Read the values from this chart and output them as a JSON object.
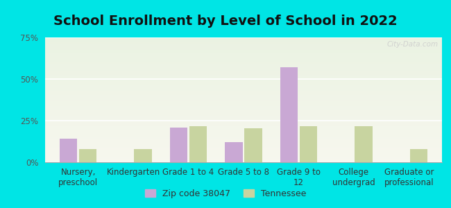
{
  "title": "School Enrollment by Level of School in 2022",
  "categories": [
    "Nursery,\npreschool",
    "Kindergarten",
    "Grade 1 to 4",
    "Grade 5 to 8",
    "Grade 9 to\n12",
    "College\nundergrad",
    "Graduate or\nprofessional"
  ],
  "zip_values": [
    14.0,
    0.0,
    21.0,
    12.0,
    57.0,
    0.0,
    0.0
  ],
  "tn_values": [
    8.0,
    8.0,
    21.5,
    20.5,
    21.5,
    21.5,
    8.0
  ],
  "zip_color": "#c9a8d4",
  "tn_color": "#c8d4a0",
  "background_outer": "#00e5e5",
  "background_inner_top": "#eaf2e2",
  "background_inner_bottom": "#f7f7ee",
  "ylim": [
    0,
    75
  ],
  "yticks": [
    0,
    25,
    50,
    75
  ],
  "ytick_labels": [
    "0%",
    "25%",
    "50%",
    "75%"
  ],
  "legend_zip_label": "Zip code 38047",
  "legend_tn_label": "Tennessee",
  "title_fontsize": 14,
  "axis_tick_fontsize": 8.5,
  "legend_fontsize": 9,
  "watermark": "City-Data.com"
}
